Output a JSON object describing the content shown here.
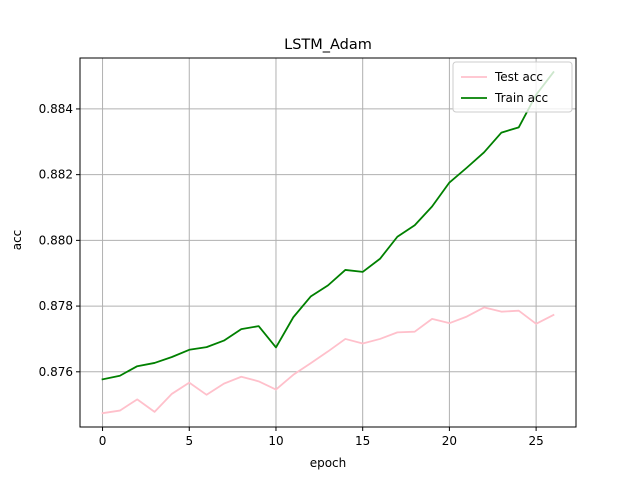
{
  "chart_data": {
    "type": "line",
    "title": "LSTM_Adam",
    "xlabel": "epoch",
    "ylabel": "acc",
    "xlim": [
      -1.3,
      27.3
    ],
    "ylim": [
      0.87432,
      0.88555
    ],
    "xticks": [
      0,
      5,
      10,
      15,
      20,
      25
    ],
    "yticks": [
      0.876,
      0.878,
      0.88,
      0.882,
      0.884
    ],
    "ytick_labels": [
      "0.876",
      "0.878",
      "0.880",
      "0.882",
      "0.884"
    ],
    "grid": true,
    "legend_position": "top-right",
    "x": [
      0,
      1,
      2,
      3,
      4,
      5,
      6,
      7,
      8,
      9,
      10,
      11,
      12,
      13,
      14,
      15,
      16,
      17,
      18,
      19,
      20,
      21,
      22,
      23,
      24,
      25,
      26
    ],
    "series": [
      {
        "name": "Test acc",
        "color": "#ffc0cb",
        "values": [
          0.87474,
          0.87482,
          0.87516,
          0.87478,
          0.87533,
          0.87567,
          0.8753,
          0.87564,
          0.87585,
          0.87571,
          0.87546,
          0.87591,
          0.87626,
          0.87662,
          0.877,
          0.87686,
          0.877,
          0.8772,
          0.87722,
          0.87761,
          0.87748,
          0.87768,
          0.87796,
          0.87783,
          0.87786,
          0.87746,
          0.87773
        ]
      },
      {
        "name": "Train acc",
        "color": "#008000",
        "values": [
          0.87577,
          0.87588,
          0.87617,
          0.87627,
          0.87645,
          0.87667,
          0.87675,
          0.87695,
          0.8773,
          0.87739,
          0.87674,
          0.87766,
          0.87829,
          0.87863,
          0.8791,
          0.87904,
          0.87944,
          0.88011,
          0.88046,
          0.88103,
          0.88176,
          0.88221,
          0.88268,
          0.88328,
          0.88344,
          0.88443,
          0.88512
        ]
      }
    ]
  }
}
